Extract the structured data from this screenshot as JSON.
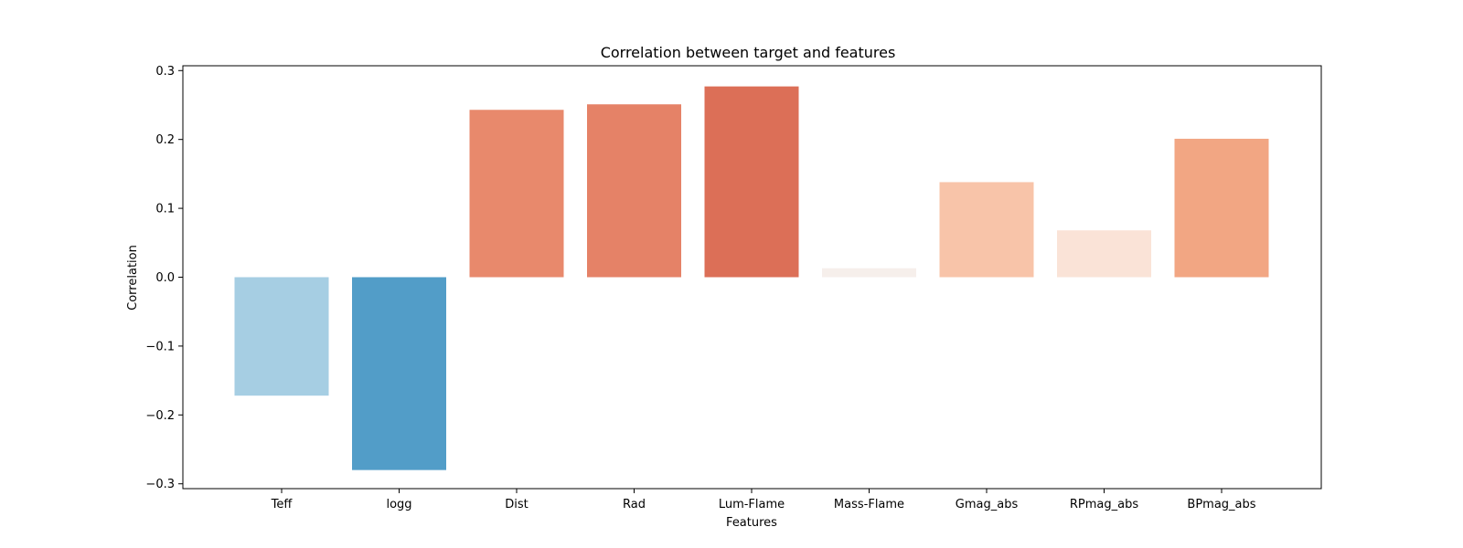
{
  "chart_data": {
    "type": "bar",
    "title": "Correlation between target and features",
    "xlabel": "Features",
    "ylabel": "Correlation",
    "categories": [
      "Teff",
      "logg",
      "Dist",
      "Rad",
      "Lum-Flame",
      "Mass-Flame",
      "Gmag_abs",
      "RPmag_abs",
      "BPmag_abs"
    ],
    "values": [
      -0.172,
      -0.28,
      0.243,
      0.251,
      0.277,
      0.013,
      0.138,
      0.068,
      0.201
    ],
    "colors": [
      "#a6cee3",
      "#529dc8",
      "#e8896c",
      "#e58267",
      "#dc6f57",
      "#f6efeb",
      "#f8c4a9",
      "#fae3d7",
      "#f2a683"
    ],
    "ylim": [
      -0.307,
      0.307
    ],
    "yticks": [
      -0.3,
      -0.2,
      -0.1,
      0.0,
      0.1,
      0.2,
      0.3
    ],
    "ytick_labels": [
      "−0.3",
      "−0.2",
      "−0.1",
      "0.0",
      "0.1",
      "0.2",
      "0.3"
    ],
    "grid": false,
    "legend": "none"
  }
}
